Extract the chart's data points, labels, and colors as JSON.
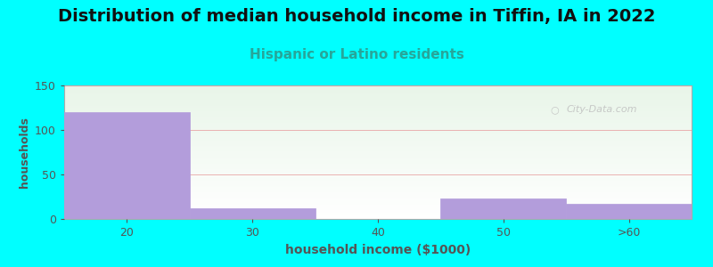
{
  "title": "Distribution of median household income in Tiffin, IA in 2022",
  "subtitle": "Hispanic or Latino residents",
  "xlabel": "household income ($1000)",
  "ylabel": "households",
  "background_color": "#00FFFF",
  "bar_color": "#b39ddb",
  "categories": [
    "20",
    "30",
    "40",
    "50",
    ">60"
  ],
  "values": [
    120,
    12,
    0,
    23,
    17
  ],
  "ylim": [
    0,
    150
  ],
  "yticks": [
    0,
    50,
    100,
    150
  ],
  "title_fontsize": 14,
  "subtitle_fontsize": 11,
  "subtitle_color": "#26a69a",
  "axis_label_color": "#555555",
  "tick_color": "#555555",
  "watermark": "City-Data.com",
  "watermark_color": "#c0c0c0",
  "grid_color": "#e8a0a0",
  "plot_bg_colors": [
    "#e8f5e9",
    "#f5fff5",
    "#ffffff"
  ]
}
